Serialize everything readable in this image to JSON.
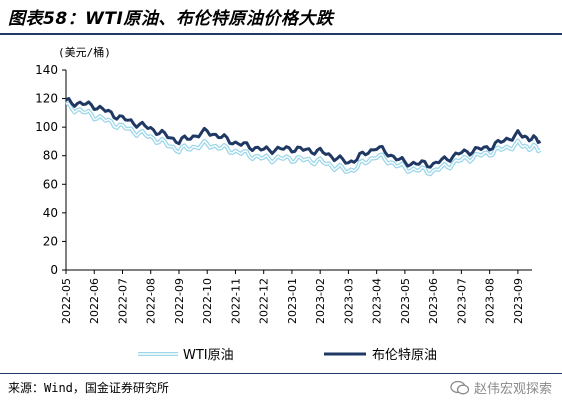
{
  "header": {
    "title": "图表58：WTI原油、布伦特原油价格大跌"
  },
  "footer": {
    "source": "来源：Wind，国金证券研究所",
    "watermark": "赵伟宏观探索"
  },
  "chart_data": {
    "type": "line",
    "ylabel": "(美元/桶)",
    "ylim": [
      0,
      140
    ],
    "yticks": [
      0,
      20,
      40,
      60,
      80,
      100,
      120,
      140
    ],
    "categories": [
      "2022-05",
      "2022-06",
      "2022-07",
      "2022-08",
      "2022-09",
      "2022-10",
      "2022-11",
      "2022-12",
      "2023-01",
      "2023-02",
      "2023-03",
      "2023-04",
      "2023-05",
      "2023-06",
      "2023-07",
      "2023-08",
      "2023-09"
    ],
    "x": [
      "2022-05",
      "2022-06",
      "2022-07",
      "2022-08",
      "2022-09",
      "2022-10",
      "2022-11",
      "2022-12",
      "2023-01",
      "2023-02",
      "2023-03",
      "2023-04",
      "2023-05",
      "2023-06",
      "2023-07",
      "2023-08",
      "2023-09",
      "2023-09-25"
    ],
    "series": [
      {
        "name": "WTI原油",
        "color": "#9dd7ea",
        "style": "double",
        "values": [
          115,
          108,
          100,
          93,
          84,
          88,
          83,
          78,
          78,
          76,
          69,
          80,
          71,
          69,
          77,
          82,
          88,
          84
        ]
      },
      {
        "name": "布伦特原油",
        "color": "#1f3864",
        "style": "thick",
        "values": [
          118,
          115,
          106,
          99,
          90,
          97,
          89,
          84,
          85,
          83,
          75,
          86,
          75,
          74,
          82,
          86,
          95,
          90
        ]
      }
    ],
    "legend": "bottom"
  }
}
